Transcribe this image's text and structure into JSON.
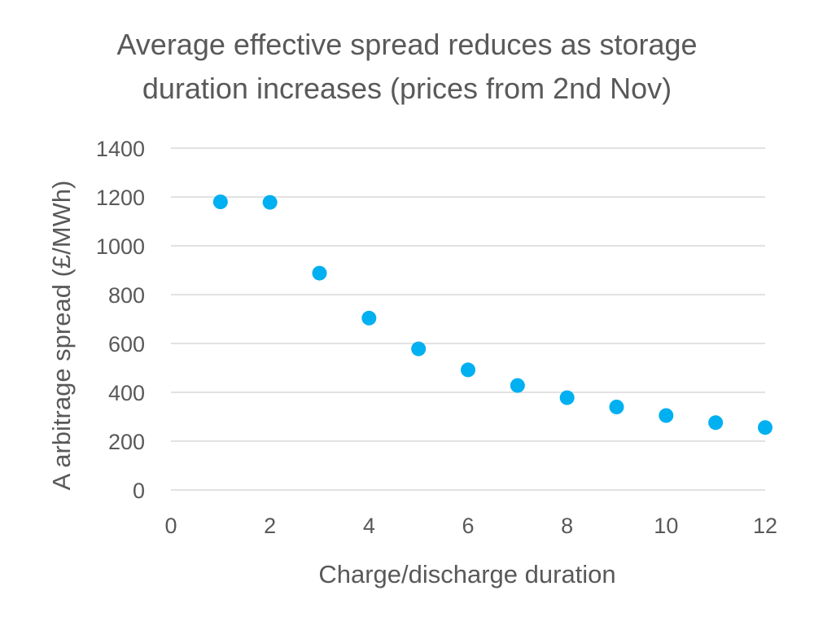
{
  "chart_data": {
    "type": "scatter",
    "title_lines": [
      "Average effective spread reduces as storage",
      "duration increases (prices from 2nd Nov)"
    ],
    "xlabel": "Charge/discharge duration",
    "ylabel": "A arbitrage spread (£/MWh)",
    "xlim": [
      0,
      12
    ],
    "ylim": [
      0,
      1400
    ],
    "x_ticks": [
      0,
      2,
      4,
      6,
      8,
      10,
      12
    ],
    "y_ticks": [
      0,
      200,
      400,
      600,
      800,
      1000,
      1200,
      1400
    ],
    "grid": true,
    "legend": "none",
    "series": [
      {
        "color": "#00B0F0",
        "points": [
          {
            "x": 1,
            "y": 1180
          },
          {
            "x": 2,
            "y": 1178
          },
          {
            "x": 3,
            "y": 888
          },
          {
            "x": 4,
            "y": 704
          },
          {
            "x": 5,
            "y": 578
          },
          {
            "x": 6,
            "y": 492
          },
          {
            "x": 7,
            "y": 428
          },
          {
            "x": 8,
            "y": 378
          },
          {
            "x": 9,
            "y": 340
          },
          {
            "x": 10,
            "y": 305
          },
          {
            "x": 11,
            "y": 276
          },
          {
            "x": 12,
            "y": 256
          }
        ]
      }
    ]
  }
}
